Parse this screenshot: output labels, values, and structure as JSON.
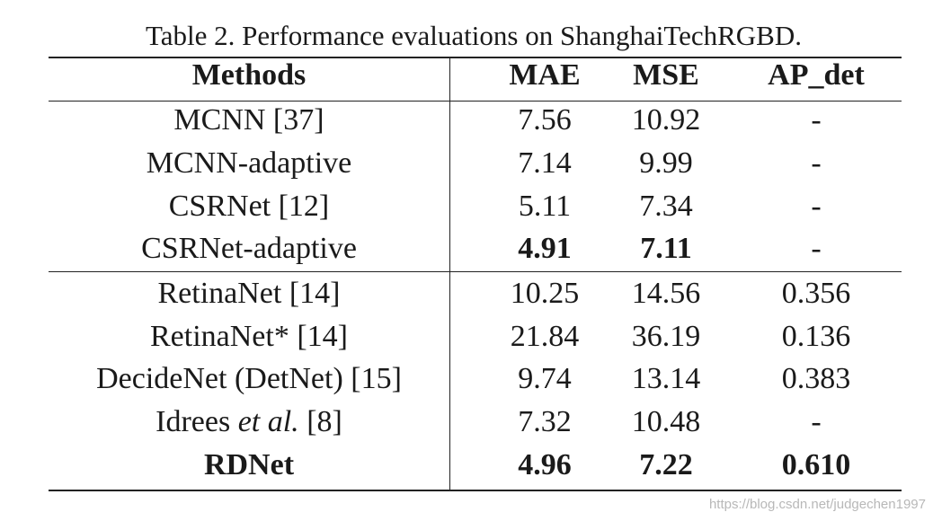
{
  "caption": "Table 2. Performance evaluations on ShanghaiTechRGBD.",
  "headers": {
    "methods": "Methods",
    "mae": "MAE",
    "mse": "MSE",
    "ap_det": "AP_det"
  },
  "rows": [
    {
      "method": "MCNN [37]",
      "mae": "7.56",
      "mse": "10.92",
      "ap": "-"
    },
    {
      "method": "MCNN-adaptive",
      "mae": "7.14",
      "mse": "9.99",
      "ap": "-"
    },
    {
      "method": "CSRNet [12]",
      "mae": "5.11",
      "mse": "7.34",
      "ap": "-"
    },
    {
      "method": "CSRNet-adaptive",
      "mae": "4.91",
      "mse": "7.11",
      "ap": "-"
    },
    {
      "method": "RetinaNet [14]",
      "mae": "10.25",
      "mse": "14.56",
      "ap": "0.356"
    },
    {
      "method": "RetinaNet* [14]",
      "mae": "21.84",
      "mse": "36.19",
      "ap": "0.136"
    },
    {
      "method": "DecideNet (DetNet) [15]",
      "mae": "9.74",
      "mse": "13.14",
      "ap": "0.383"
    },
    {
      "method_prefix": "Idrees ",
      "method_italic": "et al.",
      "method_suffix": " [8]",
      "mae": "7.32",
      "mse": "10.48",
      "ap": "-"
    },
    {
      "method": "RDNet",
      "mae": "4.96",
      "mse": "7.22",
      "ap": "0.610"
    }
  ],
  "watermark": "https://blog.csdn.net/judgechen1997"
}
